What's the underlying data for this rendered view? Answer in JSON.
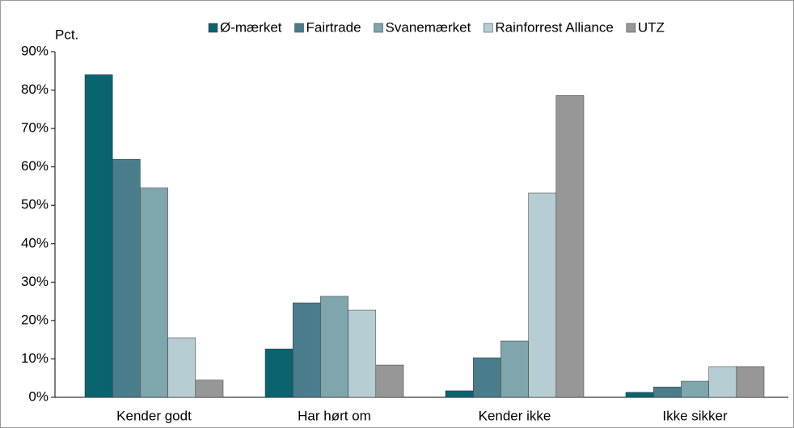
{
  "chart_data": {
    "type": "bar",
    "y_label": "Pct.",
    "categories": [
      "Kender godt",
      "Har hørt om",
      "Kender ikke",
      "Ikke sikker"
    ],
    "series": [
      {
        "name": "Ø-mærket",
        "color": "#0a6470",
        "values": [
          84,
          12.6,
          1.7,
          1.3
        ]
      },
      {
        "name": "Fairtrade",
        "color": "#4a7d8c",
        "values": [
          62,
          24.6,
          10.3,
          2.7
        ]
      },
      {
        "name": "Svanemærket",
        "color": "#7fa5ad",
        "values": [
          54.5,
          26.3,
          14.7,
          4.2
        ]
      },
      {
        "name": "Rainforrest Alliance",
        "color": "#b7cdd4",
        "values": [
          15.5,
          22.7,
          53.2,
          8
        ]
      },
      {
        "name": "UTZ",
        "color": "#979797",
        "values": [
          4.5,
          8.4,
          78.6,
          8
        ]
      }
    ],
    "ylim": [
      0,
      90
    ],
    "yticks": [
      {
        "value": 0,
        "label": "0%"
      },
      {
        "value": 10,
        "label": "10%"
      },
      {
        "value": 20,
        "label": "20%"
      },
      {
        "value": 30,
        "label": "30%"
      },
      {
        "value": 40,
        "label": "40%"
      },
      {
        "value": 50,
        "label": "50%"
      },
      {
        "value": 60,
        "label": "60%"
      },
      {
        "value": 70,
        "label": "70%"
      },
      {
        "value": 80,
        "label": "80%"
      },
      {
        "value": 90,
        "label": "90%"
      }
    ],
    "legend": "top"
  }
}
